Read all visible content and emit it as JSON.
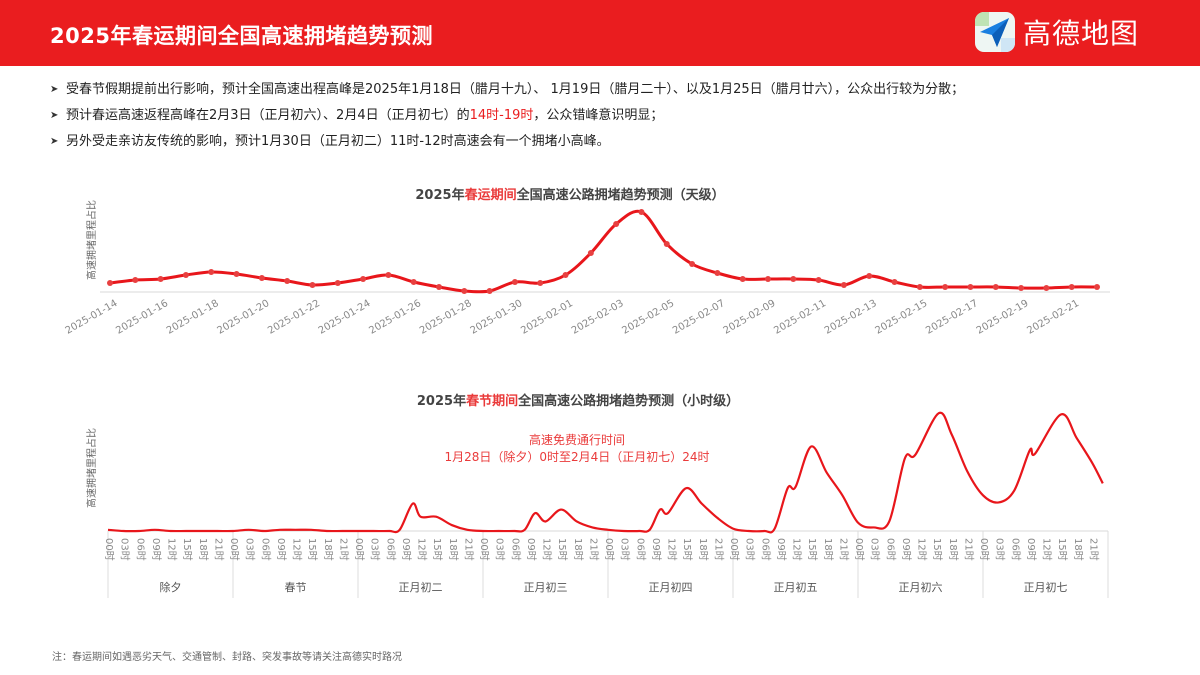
{
  "header": {
    "title": "2025年春运期间全国高速拥堵趋势预测",
    "logo_text": "高德地图",
    "bg_color": "#ea1d1f"
  },
  "bullets": [
    {
      "text": "受春节假期提前出行影响，预计全国高速出程高峰是2025年1月18日（腊月十九）、 1月19日（腊月二十）、以及1月25日（腊月廿六），公众出行较为分散；"
    },
    {
      "pre": "预计春运高速返程高峰在2月3日（正月初六）、2月4日（正月初七）的",
      "highlight": "14时-19时",
      "post": "，公众错峰意识明显；"
    },
    {
      "text": "另外受走亲访友传统的影响，预计1月30日（正月初二）11时-12时高速会有一个拥堵小高峰。"
    }
  ],
  "note": "注：春运期间如遇恶劣天气、交通管制、封路、突发事故等请关注高德实时路况",
  "chart_data": [
    {
      "type": "line",
      "title_pre": "2025年",
      "title_highlight": "春运期间",
      "title_post": "全国高速公路拥堵趋势预测（天级）",
      "ylabel": "高速拥堵里程占比",
      "xlabel": "",
      "grid": false,
      "color": "#e8161b",
      "x": [
        "2025-01-14",
        "2025-01-15",
        "2025-01-16",
        "2025-01-17",
        "2025-01-18",
        "2025-01-19",
        "2025-01-20",
        "2025-01-21",
        "2025-01-22",
        "2025-01-23",
        "2025-01-24",
        "2025-01-25",
        "2025-01-26",
        "2025-01-27",
        "2025-01-28",
        "2025-01-29",
        "2025-01-30",
        "2025-01-31",
        "2025-02-01",
        "2025-02-02",
        "2025-02-03",
        "2025-02-04",
        "2025-02-05",
        "2025-02-06",
        "2025-02-07",
        "2025-02-08",
        "2025-02-09",
        "2025-02-10",
        "2025-02-11",
        "2025-02-12",
        "2025-02-13",
        "2025-02-14",
        "2025-02-15",
        "2025-02-16",
        "2025-02-17",
        "2025-02-18",
        "2025-02-19",
        "2025-02-20",
        "2025-02-21",
        "2025-02-22"
      ],
      "values": [
        9,
        12,
        13,
        17,
        20,
        18,
        14,
        11,
        7,
        9,
        13,
        17,
        10,
        5,
        1,
        1,
        10,
        9,
        17,
        39,
        68,
        80,
        48,
        28,
        19,
        13,
        13,
        13,
        12,
        7,
        16,
        10,
        5,
        5,
        5,
        5,
        4,
        4,
        5,
        5
      ],
      "tick_labels": [
        "2025-01-14",
        "2025-01-16",
        "2025-01-18",
        "2025-01-20",
        "2025-01-22",
        "2025-01-24",
        "2025-01-26",
        "2025-01-28",
        "2025-01-30",
        "2025-02-01",
        "2025-02-03",
        "2025-02-05",
        "2025-02-07",
        "2025-02-09",
        "2025-02-11",
        "2025-02-13",
        "2025-02-15",
        "2025-02-17",
        "2025-02-19",
        "2025-02-21"
      ]
    },
    {
      "type": "line",
      "title_pre": "2025年",
      "title_highlight": "春节期间",
      "title_post": "全国高速公路拥堵趋势预测（小时级）",
      "ylabel": "高速拥堵里程占比",
      "xlabel": "",
      "grid": false,
      "color": "#e8161b",
      "annotation": [
        "高速免费通行时间",
        "1月28日（除夕）0时至2月4日（正月初七）24时"
      ],
      "hour_ticks": [
        "00时",
        "03时",
        "06时",
        "09时",
        "12时",
        "15时",
        "18时",
        "21时"
      ],
      "days": [
        {
          "label": "除夕",
          "points": [
            [
              0,
              1
            ],
            [
              3,
              0
            ],
            [
              6,
              0
            ],
            [
              9,
              1
            ],
            [
              12,
              0
            ],
            [
              15,
              0
            ],
            [
              18,
              0
            ],
            [
              21,
              0
            ]
          ]
        },
        {
          "label": "春节",
          "points": [
            [
              0,
              0
            ],
            [
              3,
              1
            ],
            [
              6,
              0
            ],
            [
              9,
              1
            ],
            [
              12,
              1
            ],
            [
              15,
              1
            ],
            [
              18,
              0
            ],
            [
              21,
              0
            ]
          ]
        },
        {
          "label": "正月初二",
          "points": [
            [
              0,
              0
            ],
            [
              3,
              0
            ],
            [
              6,
              0
            ],
            [
              8,
              1
            ],
            [
              10.5,
              23
            ],
            [
              12,
              12
            ],
            [
              15,
              12
            ],
            [
              18,
              5
            ],
            [
              21,
              1
            ]
          ]
        },
        {
          "label": "正月初三",
          "points": [
            [
              0,
              0
            ],
            [
              3,
              0
            ],
            [
              6,
              0
            ],
            [
              8,
              1
            ],
            [
              10,
              15
            ],
            [
              12,
              8
            ],
            [
              15,
              18
            ],
            [
              18,
              8
            ],
            [
              21,
              3
            ]
          ]
        },
        {
          "label": "正月初四",
          "points": [
            [
              0,
              1
            ],
            [
              3,
              0
            ],
            [
              6,
              0
            ],
            [
              8,
              1
            ],
            [
              10,
              18
            ],
            [
              11.5,
              15
            ],
            [
              15,
              36
            ],
            [
              18,
              23
            ],
            [
              21,
              11
            ]
          ]
        },
        {
          "label": "正月初五",
          "points": [
            [
              0,
              2
            ],
            [
              3,
              0
            ],
            [
              6,
              0
            ],
            [
              8,
              2
            ],
            [
              10.5,
              36
            ],
            [
              12,
              37
            ],
            [
              15,
              71
            ],
            [
              18,
              49
            ],
            [
              21,
              30
            ]
          ]
        },
        {
          "label": "正月初六",
          "points": [
            [
              0,
              7
            ],
            [
              3,
              3
            ],
            [
              6,
              8
            ],
            [
              9,
              61
            ],
            [
              11,
              64
            ],
            [
              15.5,
              99
            ],
            [
              18,
              81
            ],
            [
              21,
              50
            ]
          ]
        },
        {
          "label": "正月初七",
          "points": [
            [
              0,
              30
            ],
            [
              3,
              24
            ],
            [
              6,
              34
            ],
            [
              9,
              68
            ],
            [
              10,
              65
            ],
            [
              15,
              98
            ],
            [
              18,
              78
            ],
            [
              21,
              57
            ],
            [
              23,
              40
            ]
          ]
        }
      ]
    }
  ]
}
